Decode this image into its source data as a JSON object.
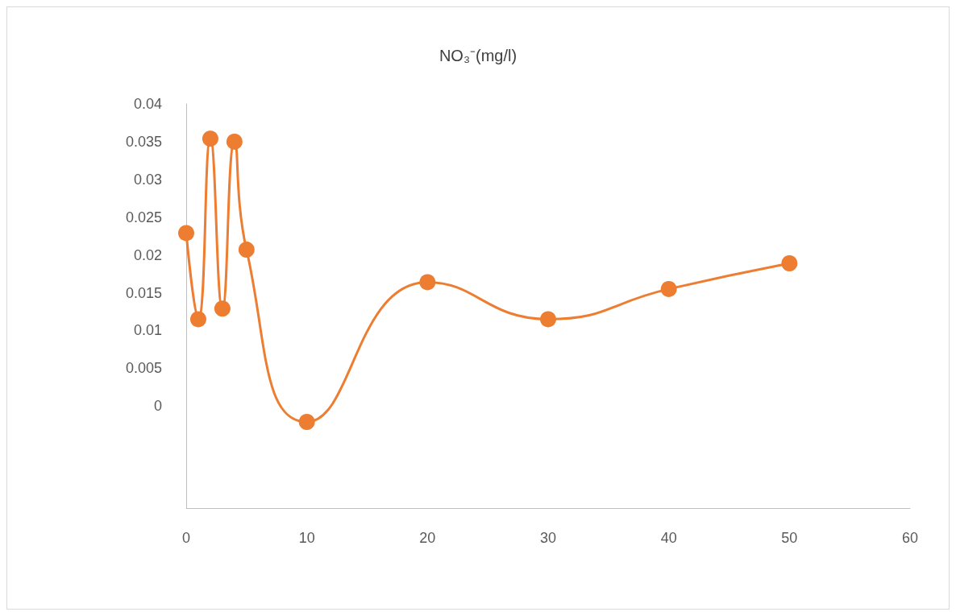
{
  "chart_data": {
    "type": "line",
    "title": "NO₃⁻(mg/l)",
    "x": [
      0,
      1,
      2,
      3,
      4,
      5,
      10,
      20,
      30,
      40,
      50
    ],
    "series": [
      {
        "color": "#ed7d31",
        "values": [
          0.0229,
          0.0115,
          0.0354,
          0.0129,
          0.035,
          0.0207,
          -0.0021,
          0.0164,
          0.0115,
          0.0155,
          0.0189
        ]
      }
    ],
    "xlim": [
      0,
      60
    ],
    "xticks": [
      0,
      10,
      20,
      30,
      40,
      50,
      60
    ],
    "ylim": [
      -0.0135,
      0.04
    ],
    "yticks": [
      0,
      0.005,
      0.01,
      0.015,
      0.02,
      0.025,
      0.03,
      0.035,
      0.04
    ],
    "marker": "circle",
    "line_style": "solid"
  }
}
